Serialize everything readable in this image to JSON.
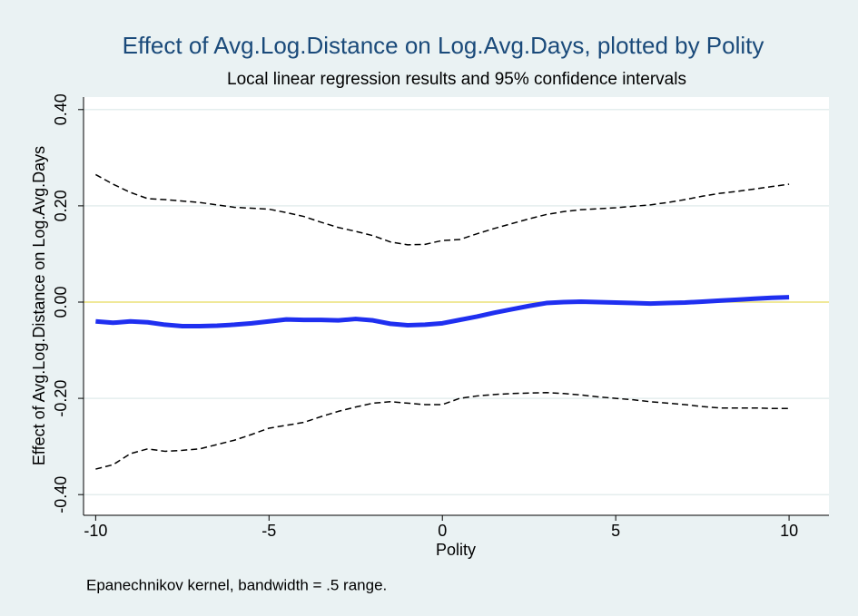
{
  "chart_data": {
    "type": "line",
    "title": "Effect of Avg.Log.Distance on Log.Avg.Days, plotted by Polity",
    "subtitle": "Local linear regression results and 95% confidence intervals",
    "x_label": "Polity",
    "y_label": "Effect of Avg.Log.Distance on Log.Avg.Days",
    "note": "Epanechnikov kernel, bandwidth = .5 range.",
    "x": [
      -10,
      -9.5,
      -9,
      -8.5,
      -8,
      -7.5,
      -7,
      -6.5,
      -6,
      -5.5,
      -5,
      -4.5,
      -4,
      -3.5,
      -3,
      -2.5,
      -2,
      -1.5,
      -1,
      -0.5,
      0,
      0.5,
      1,
      1.5,
      2,
      2.5,
      3,
      3.5,
      4,
      4.5,
      5,
      5.5,
      6,
      6.5,
      7,
      7.5,
      8,
      8.5,
      9,
      9.5,
      10
    ],
    "series": [
      {
        "color": "#000000",
        "dash": true,
        "width": 1.5,
        "values": [
          0.265,
          0.245,
          0.228,
          0.215,
          0.213,
          0.21,
          0.207,
          0.202,
          0.197,
          0.195,
          0.193,
          0.186,
          0.178,
          0.166,
          0.155,
          0.147,
          0.138,
          0.125,
          0.119,
          0.12,
          0.128,
          0.13,
          0.142,
          0.153,
          0.163,
          0.173,
          0.182,
          0.188,
          0.192,
          0.194,
          0.196,
          0.199,
          0.202,
          0.207,
          0.213,
          0.22,
          0.226,
          0.23,
          0.235,
          0.24,
          0.245
        ]
      },
      {
        "color": "#1f2ff0",
        "dash": false,
        "width": 5,
        "values": [
          -0.04,
          -0.043,
          -0.04,
          -0.042,
          -0.047,
          -0.05,
          -0.05,
          -0.049,
          -0.047,
          -0.044,
          -0.04,
          -0.036,
          -0.037,
          -0.037,
          -0.038,
          -0.035,
          -0.038,
          -0.045,
          -0.048,
          -0.047,
          -0.044,
          -0.037,
          -0.03,
          -0.022,
          -0.015,
          -0.008,
          -0.002,
          0,
          0.001,
          0,
          -0.001,
          -0.002,
          -0.003,
          -0.002,
          -0.001,
          0.001,
          0.003,
          0.005,
          0.007,
          0.009,
          0.01
        ]
      },
      {
        "color": "#000000",
        "dash": true,
        "width": 1.5,
        "values": [
          -0.347,
          -0.338,
          -0.315,
          -0.305,
          -0.31,
          -0.308,
          -0.305,
          -0.296,
          -0.287,
          -0.275,
          -0.262,
          -0.256,
          -0.25,
          -0.238,
          -0.227,
          -0.218,
          -0.21,
          -0.207,
          -0.21,
          -0.213,
          -0.213,
          -0.2,
          -0.195,
          -0.192,
          -0.19,
          -0.189,
          -0.188,
          -0.19,
          -0.193,
          -0.197,
          -0.2,
          -0.203,
          -0.207,
          -0.21,
          -0.213,
          -0.217,
          -0.22,
          -0.22,
          -0.22,
          -0.221,
          -0.221
        ]
      }
    ],
    "xlim": [
      -10.35,
      11.15
    ],
    "ylim": [
      -0.443,
      0.426
    ],
    "xticks": [
      -10,
      -5,
      0,
      5,
      10
    ],
    "yticks": [
      {
        "value": -0.4,
        "label": "-0.40"
      },
      {
        "value": -0.2,
        "label": "-0.20"
      },
      {
        "value": 0,
        "label": "0.00"
      },
      {
        "value": 0.2,
        "label": "0.20"
      },
      {
        "value": 0.4,
        "label": "0.40"
      }
    ],
    "grid": true,
    "yline": 0,
    "yline_color": "#f0e060"
  }
}
